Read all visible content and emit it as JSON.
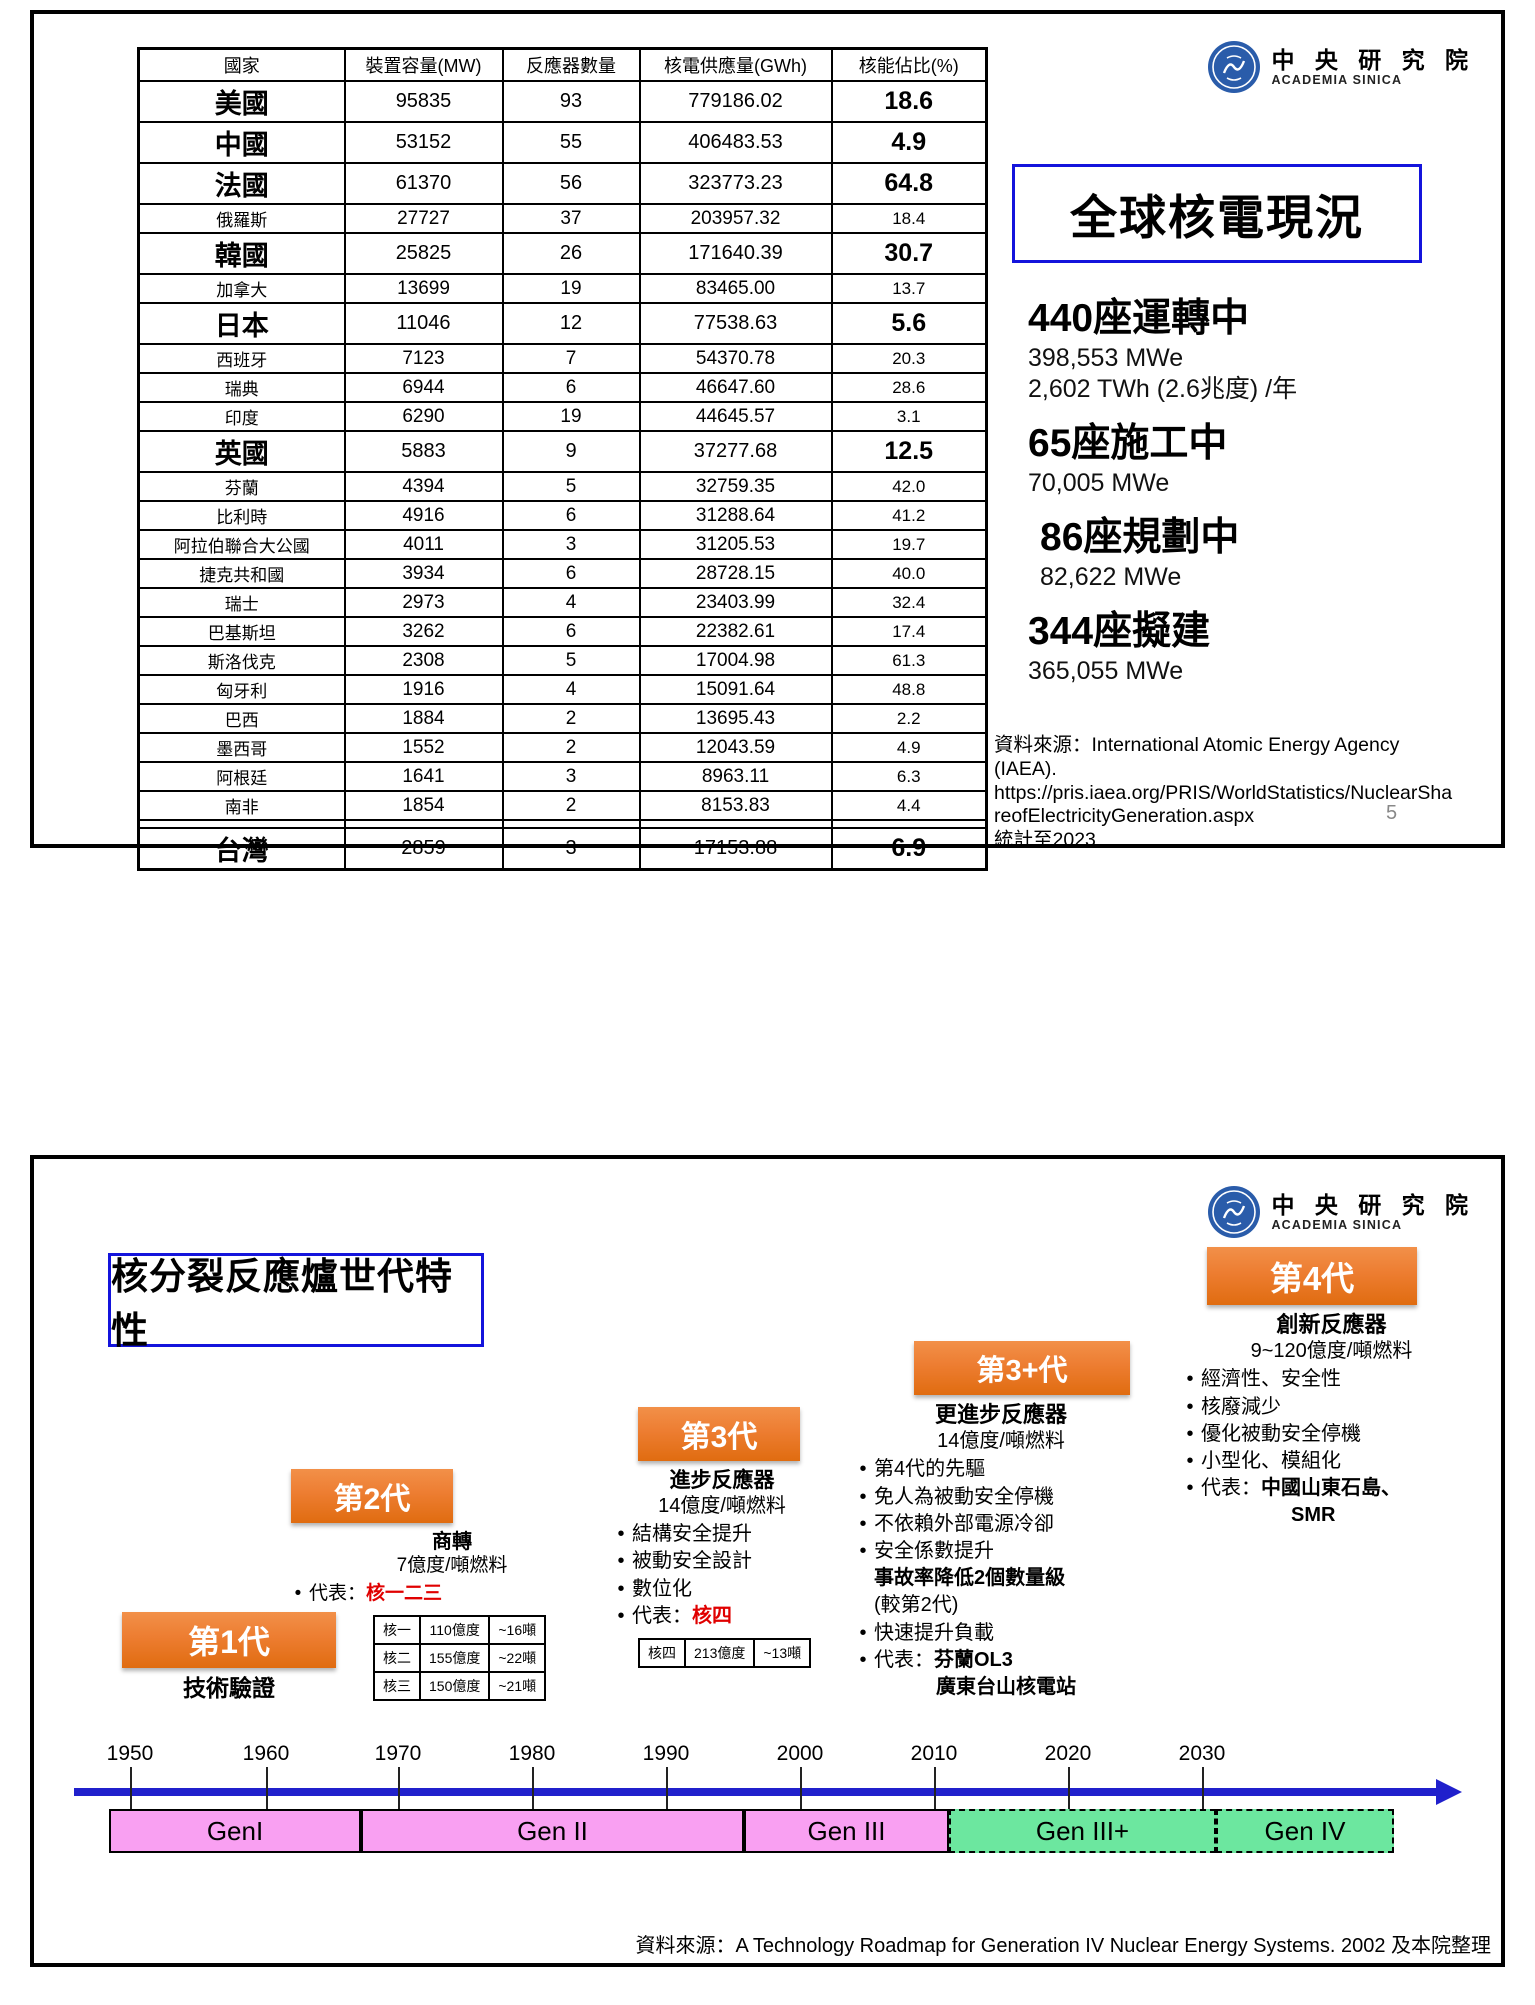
{
  "logo": {
    "org_zh": "中 央 研 究 院",
    "org_en": "ACADEMIA SINICA"
  },
  "palette": {
    "orange": "#ED7D31",
    "blue_border": "#1414DC",
    "arrow_blue": "#2020CC",
    "bar_pink": "#F9A0F2",
    "bar_green": "#6CE79F",
    "red_text": "#E00000",
    "logo_blue": "#2A5CAA"
  },
  "slide1": {
    "title": "全球核電現況",
    "table": {
      "headers": [
        "國家",
        "裝置容量(MW)",
        "反應器數量",
        "核電供應量(GWh)",
        "核能佔比(%)"
      ],
      "rows": [
        {
          "country": "美國",
          "capacity": "95835",
          "reactors": "93",
          "supply": "779186.02",
          "share": "18.6",
          "bold": true
        },
        {
          "country": "中國",
          "capacity": "53152",
          "reactors": "55",
          "supply": "406483.53",
          "share": "4.9",
          "bold": true
        },
        {
          "country": "法國",
          "capacity": "61370",
          "reactors": "56",
          "supply": "323773.23",
          "share": "64.8",
          "bold": true
        },
        {
          "country": "俄羅斯",
          "capacity": "27727",
          "reactors": "37",
          "supply": "203957.32",
          "share": "18.4",
          "bold": false
        },
        {
          "country": "韓國",
          "capacity": "25825",
          "reactors": "26",
          "supply": "171640.39",
          "share": "30.7",
          "bold": true
        },
        {
          "country": "加拿大",
          "capacity": "13699",
          "reactors": "19",
          "supply": "83465.00",
          "share": "13.7",
          "bold": false
        },
        {
          "country": "日本",
          "capacity": "11046",
          "reactors": "12",
          "supply": "77538.63",
          "share": "5.6",
          "bold": true
        },
        {
          "country": "西班牙",
          "capacity": "7123",
          "reactors": "7",
          "supply": "54370.78",
          "share": "20.3",
          "bold": false
        },
        {
          "country": "瑞典",
          "capacity": "6944",
          "reactors": "6",
          "supply": "46647.60",
          "share": "28.6",
          "bold": false
        },
        {
          "country": "印度",
          "capacity": "6290",
          "reactors": "19",
          "supply": "44645.57",
          "share": "3.1",
          "bold": false
        },
        {
          "country": "英國",
          "capacity": "5883",
          "reactors": "9",
          "supply": "37277.68",
          "share": "12.5",
          "bold": true
        },
        {
          "country": "芬蘭",
          "capacity": "4394",
          "reactors": "5",
          "supply": "32759.35",
          "share": "42.0",
          "bold": false
        },
        {
          "country": "比利時",
          "capacity": "4916",
          "reactors": "6",
          "supply": "31288.64",
          "share": "41.2",
          "bold": false
        },
        {
          "country": "阿拉伯聯合大公國",
          "capacity": "4011",
          "reactors": "3",
          "supply": "31205.53",
          "share": "19.7",
          "bold": false
        },
        {
          "country": "捷克共和國",
          "capacity": "3934",
          "reactors": "6",
          "supply": "28728.15",
          "share": "40.0",
          "bold": false
        },
        {
          "country": "瑞士",
          "capacity": "2973",
          "reactors": "4",
          "supply": "23403.99",
          "share": "32.4",
          "bold": false
        },
        {
          "country": "巴基斯坦",
          "capacity": "3262",
          "reactors": "6",
          "supply": "22382.61",
          "share": "17.4",
          "bold": false
        },
        {
          "country": "斯洛伐克",
          "capacity": "2308",
          "reactors": "5",
          "supply": "17004.98",
          "share": "61.3",
          "bold": false
        },
        {
          "country": "匈牙利",
          "capacity": "1916",
          "reactors": "4",
          "supply": "15091.64",
          "share": "48.8",
          "bold": false
        },
        {
          "country": "巴西",
          "capacity": "1884",
          "reactors": "2",
          "supply": "13695.43",
          "share": "2.2",
          "bold": false
        },
        {
          "country": "墨西哥",
          "capacity": "1552",
          "reactors": "2",
          "supply": "12043.59",
          "share": "4.9",
          "bold": false
        },
        {
          "country": "阿根廷",
          "capacity": "1641",
          "reactors": "3",
          "supply": "8963.11",
          "share": "6.3",
          "bold": false
        },
        {
          "country": "南非",
          "capacity": "1854",
          "reactors": "2",
          "supply": "8153.83",
          "share": "4.4",
          "bold": false
        },
        {
          "country": "台灣",
          "capacity": "2859",
          "reactors": "3",
          "supply": "17153.88",
          "share": "6.9",
          "bold": true,
          "separated": true
        }
      ]
    },
    "stats": [
      {
        "headline": "440座運轉中",
        "details": [
          "398,553 MWe",
          "2,602 TWh (2.6兆度) /年"
        ]
      },
      {
        "headline": "65座施工中",
        "details": [
          "70,005 MWe"
        ]
      },
      {
        "headline": "86座規劃中",
        "details": [
          "82,622 MWe"
        ],
        "indent": true
      },
      {
        "headline": "344座擬建",
        "details": [
          "365,055 MWe"
        ]
      }
    ],
    "source_lines": [
      "資料來源：International Atomic Energy Agency (IAEA).",
      "https://pris.iaea.org/PRIS/WorldStatistics/NuclearSha",
      "reofElectricityGeneration.aspx",
      "統計至2023"
    ],
    "page_number": "5"
  },
  "slide2": {
    "title": "核分裂反應爐世代特性",
    "generations": [
      {
        "label": "第1代",
        "head": "技術驗證"
      },
      {
        "label": "第2代",
        "head": "商轉",
        "fuel": "7億度/噸燃料",
        "lines": [
          {
            "bullet": true,
            "segs": [
              {
                "t": "代表："
              },
              {
                "t": "核一二三",
                "cls": "red"
              }
            ]
          }
        ],
        "table": [
          [
            "核一",
            "110億度",
            "~16噸"
          ],
          [
            "核二",
            "155億度",
            "~22噸"
          ],
          [
            "核三",
            "150億度",
            "~21噸"
          ]
        ]
      },
      {
        "label": "第3代",
        "head": "進步反應器",
        "fuel": "14億度/噸燃料",
        "lines": [
          {
            "bullet": true,
            "segs": [
              {
                "t": "結構安全提升"
              }
            ]
          },
          {
            "bullet": true,
            "segs": [
              {
                "t": "被動安全設計"
              }
            ]
          },
          {
            "bullet": true,
            "segs": [
              {
                "t": "數位化"
              }
            ]
          },
          {
            "bullet": true,
            "segs": [
              {
                "t": "代表："
              },
              {
                "t": "核四",
                "cls": "red"
              }
            ]
          }
        ],
        "table": [
          [
            "核四",
            "213億度",
            "~13噸"
          ]
        ]
      },
      {
        "label": "第3+代",
        "head": "更進步反應器",
        "fuel": "14億度/噸燃料",
        "lines": [
          {
            "bullet": true,
            "segs": [
              {
                "t": "第4代的先驅"
              }
            ]
          },
          {
            "bullet": true,
            "segs": [
              {
                "t": "免人為被動安全停機"
              }
            ]
          },
          {
            "bullet": true,
            "segs": [
              {
                "t": "不依賴外部電源冷卻"
              }
            ]
          },
          {
            "bullet": true,
            "segs": [
              {
                "t": "安全係數提升"
              }
            ]
          },
          {
            "bullet": false,
            "ind": 22,
            "segs": [
              {
                "t": "事故率降低2個數量級",
                "cls": "b"
              }
            ]
          },
          {
            "bullet": false,
            "ind": 22,
            "segs": [
              {
                "t": "(較第2代)"
              }
            ]
          },
          {
            "bullet": true,
            "segs": [
              {
                "t": "快速提升負載"
              }
            ]
          },
          {
            "bullet": true,
            "segs": [
              {
                "t": "代表："
              },
              {
                "t": "芬蘭OL3",
                "cls": "b"
              }
            ]
          },
          {
            "bullet": false,
            "ind": 84,
            "segs": [
              {
                "t": "廣東台山核電站",
                "cls": "b"
              }
            ]
          }
        ]
      },
      {
        "label": "第4代",
        "head": "創新反應器",
        "fuel": "9~120億度/噸燃料",
        "lines": [
          {
            "bullet": true,
            "segs": [
              {
                "t": "經濟性、安全性"
              }
            ]
          },
          {
            "bullet": true,
            "segs": [
              {
                "t": "核廢減少"
              }
            ]
          },
          {
            "bullet": true,
            "segs": [
              {
                "t": "優化被動安全停機"
              }
            ]
          },
          {
            "bullet": true,
            "segs": [
              {
                "t": "小型化、模組化"
              }
            ]
          },
          {
            "bullet": true,
            "segs": [
              {
                "t": "代表："
              },
              {
                "t": "中國山東石島、",
                "cls": "b"
              }
            ]
          },
          {
            "bullet": false,
            "ind": 112,
            "segs": [
              {
                "t": "SMR",
                "cls": "b"
              }
            ]
          }
        ]
      }
    ],
    "timeline": {
      "years": [
        "1950",
        "1960",
        "1970",
        "1980",
        "1990",
        "2000",
        "2010",
        "2020",
        "2030"
      ],
      "bars": [
        {
          "label": "GenI",
          "color": "pink"
        },
        {
          "label": "Gen II",
          "color": "pink"
        },
        {
          "label": "Gen III",
          "color": "pink"
        },
        {
          "label": "Gen III+",
          "color": "green"
        },
        {
          "label": "Gen IV",
          "color": "green"
        }
      ]
    },
    "source": "資料來源：A Technology Roadmap for Generation IV Nuclear Energy Systems. 2002 及本院整理"
  }
}
